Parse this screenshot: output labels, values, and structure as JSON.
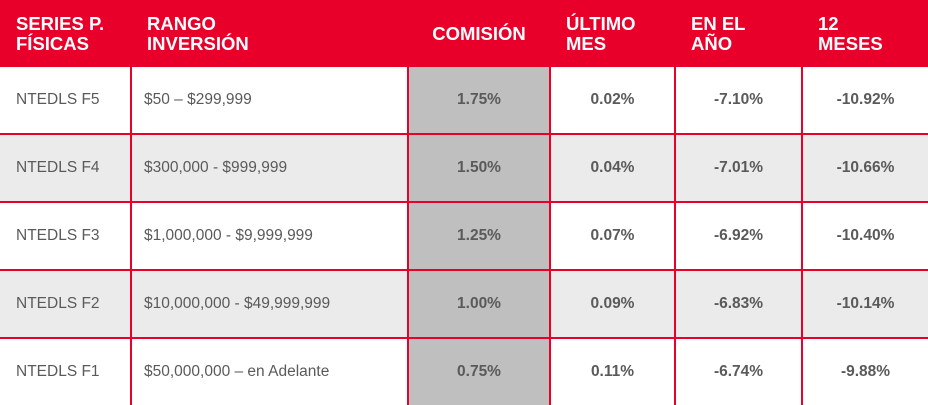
{
  "header": {
    "serie_line1": "SERIES P.",
    "serie_line2": "FÍSICAS",
    "rango_line1": "RANGO",
    "rango_line2": "INVERSIÓN",
    "comision": "COMISIÓN",
    "ultimo_line1": "ÚLTIMO",
    "ultimo_line2": "MES",
    "anio_line1": "EN EL",
    "anio_line2": "AÑO",
    "meses_line1": "12",
    "meses_line2": "MESES"
  },
  "rows": [
    {
      "serie": "NTEDLS F5",
      "rango": "$50 – $299,999",
      "comision": "1.75%",
      "ultimo_mes": "0.02%",
      "en_el_anio": "-7.10%",
      "doce_meses": "-10.92%"
    },
    {
      "serie": "NTEDLS F4",
      "rango": "$300,000 - $999,999",
      "comision": "1.50%",
      "ultimo_mes": "0.04%",
      "en_el_anio": "-7.01%",
      "doce_meses": "-10.66%"
    },
    {
      "serie": "NTEDLS F3",
      "rango": "$1,000,000 - $9,999,999",
      "comision": "1.25%",
      "ultimo_mes": "0.07%",
      "en_el_anio": "-6.92%",
      "doce_meses": "-10.40%"
    },
    {
      "serie": "NTEDLS F2",
      "rango": "$10,000,000 - $49,999,999",
      "comision": "1.00%",
      "ultimo_mes": "0.09%",
      "en_el_anio": "-6.83%",
      "doce_meses": "-10.14%"
    },
    {
      "serie": "NTEDLS F1",
      "rango": "$50,000,000 – en Adelante",
      "comision": "0.75%",
      "ultimo_mes": "0.11%",
      "en_el_anio": "-6.74%",
      "doce_meses": "-9.88%"
    }
  ],
  "colors": {
    "header_bg": "#e8002a",
    "shade_bg": "#ebebeb",
    "commission_bg": "#bfbfbf",
    "border": "#e8002a"
  }
}
